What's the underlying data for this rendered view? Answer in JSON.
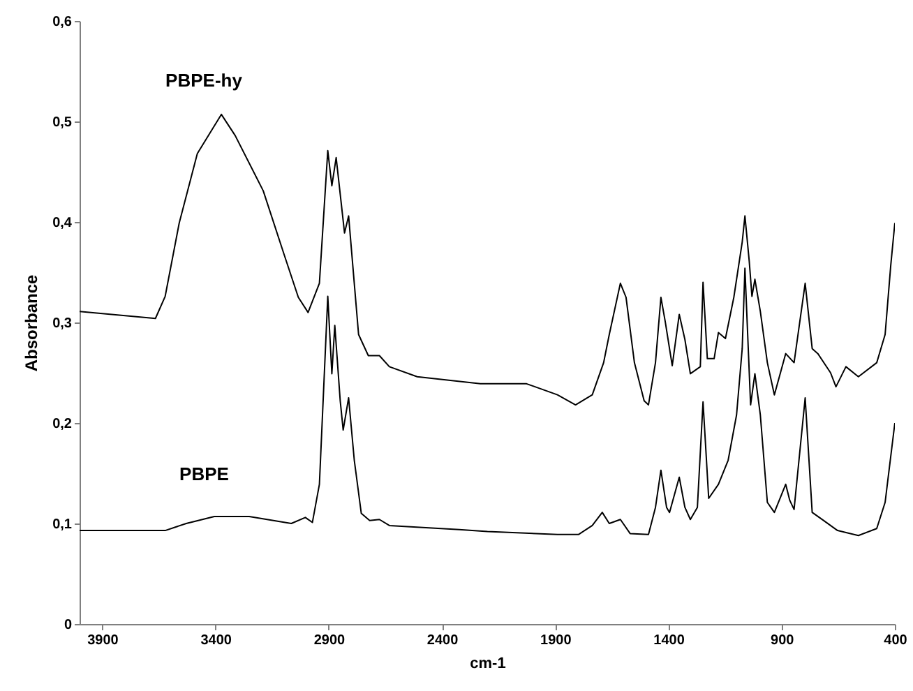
{
  "chart_data": {
    "type": "line",
    "xlabel": "cm-1",
    "ylabel": "Absorbance",
    "xlim": [
      4000,
      400
    ],
    "xticks": [
      3900,
      3400,
      2900,
      2400,
      1900,
      1400,
      900,
      400
    ],
    "ylim": [
      0,
      0.6
    ],
    "yticks": [
      {
        "value": 0,
        "label": "0"
      },
      {
        "value": 0.1,
        "label": "0,1"
      },
      {
        "value": 0.2,
        "label": "0,2"
      },
      {
        "value": 0.3,
        "label": "0,3"
      },
      {
        "value": 0.4,
        "label": "0,4"
      },
      {
        "value": 0.5,
        "label": "0,5"
      },
      {
        "value": 0.6,
        "label": "0,6"
      }
    ],
    "grid": false,
    "series": [
      {
        "name": "PBPE-hy",
        "color": "#000000",
        "x": [
          4000,
          3665,
          3622,
          3560,
          3480,
          3374,
          3313,
          3189,
          3096,
          3034,
          2991,
          2941,
          2904,
          2886,
          2867,
          2830,
          2812,
          2768,
          2725,
          2676,
          2632,
          2509,
          2230,
          2026,
          1890,
          1810,
          1736,
          1686,
          1661,
          1612,
          1587,
          1550,
          1507,
          1488,
          1457,
          1433,
          1414,
          1383,
          1352,
          1327,
          1303,
          1259,
          1247,
          1228,
          1198,
          1179,
          1148,
          1111,
          1074,
          1062,
          1043,
          1031,
          1018,
          994,
          963,
          932,
          882,
          845,
          796,
          765,
          740,
          684,
          660,
          616,
          561,
          480,
          443,
          418,
          400
        ],
        "values": [
          0.311,
          0.304,
          0.326,
          0.399,
          0.468,
          0.507,
          0.486,
          0.431,
          0.367,
          0.325,
          0.31,
          0.339,
          0.471,
          0.436,
          0.464,
          0.389,
          0.406,
          0.288,
          0.267,
          0.267,
          0.256,
          0.246,
          0.239,
          0.239,
          0.228,
          0.218,
          0.228,
          0.26,
          0.288,
          0.339,
          0.325,
          0.26,
          0.222,
          0.218,
          0.26,
          0.325,
          0.301,
          0.257,
          0.308,
          0.283,
          0.249,
          0.256,
          0.34,
          0.264,
          0.264,
          0.29,
          0.284,
          0.325,
          0.38,
          0.406,
          0.361,
          0.326,
          0.343,
          0.311,
          0.26,
          0.228,
          0.269,
          0.26,
          0.339,
          0.274,
          0.269,
          0.25,
          0.236,
          0.256,
          0.246,
          0.26,
          0.288,
          0.357,
          0.399
        ]
      },
      {
        "name": "PBPE",
        "color": "#000000",
        "x": [
          4000,
          3622,
          3529,
          3405,
          3251,
          3065,
          3003,
          2972,
          2941,
          2904,
          2886,
          2873,
          2849,
          2836,
          2812,
          2787,
          2756,
          2719,
          2676,
          2632,
          2323,
          2199,
          1890,
          1797,
          1736,
          1692,
          1661,
          1612,
          1569,
          1488,
          1457,
          1433,
          1408,
          1395,
          1352,
          1327,
          1303,
          1272,
          1247,
          1222,
          1179,
          1136,
          1099,
          1074,
          1062,
          1037,
          1018,
          994,
          963,
          932,
          882,
          864,
          845,
          796,
          765,
          715,
          653,
          561,
          480,
          443,
          418,
          400
        ],
        "values": [
          0.093,
          0.093,
          0.1,
          0.107,
          0.107,
          0.1,
          0.106,
          0.101,
          0.139,
          0.326,
          0.249,
          0.297,
          0.222,
          0.193,
          0.225,
          0.163,
          0.11,
          0.103,
          0.104,
          0.098,
          0.094,
          0.092,
          0.089,
          0.089,
          0.098,
          0.111,
          0.1,
          0.104,
          0.09,
          0.089,
          0.116,
          0.153,
          0.116,
          0.111,
          0.146,
          0.116,
          0.104,
          0.116,
          0.221,
          0.125,
          0.139,
          0.163,
          0.208,
          0.274,
          0.354,
          0.218,
          0.249,
          0.208,
          0.121,
          0.111,
          0.139,
          0.123,
          0.114,
          0.225,
          0.111,
          0.103,
          0.093,
          0.088,
          0.095,
          0.121,
          0.167,
          0.2
        ]
      }
    ]
  }
}
